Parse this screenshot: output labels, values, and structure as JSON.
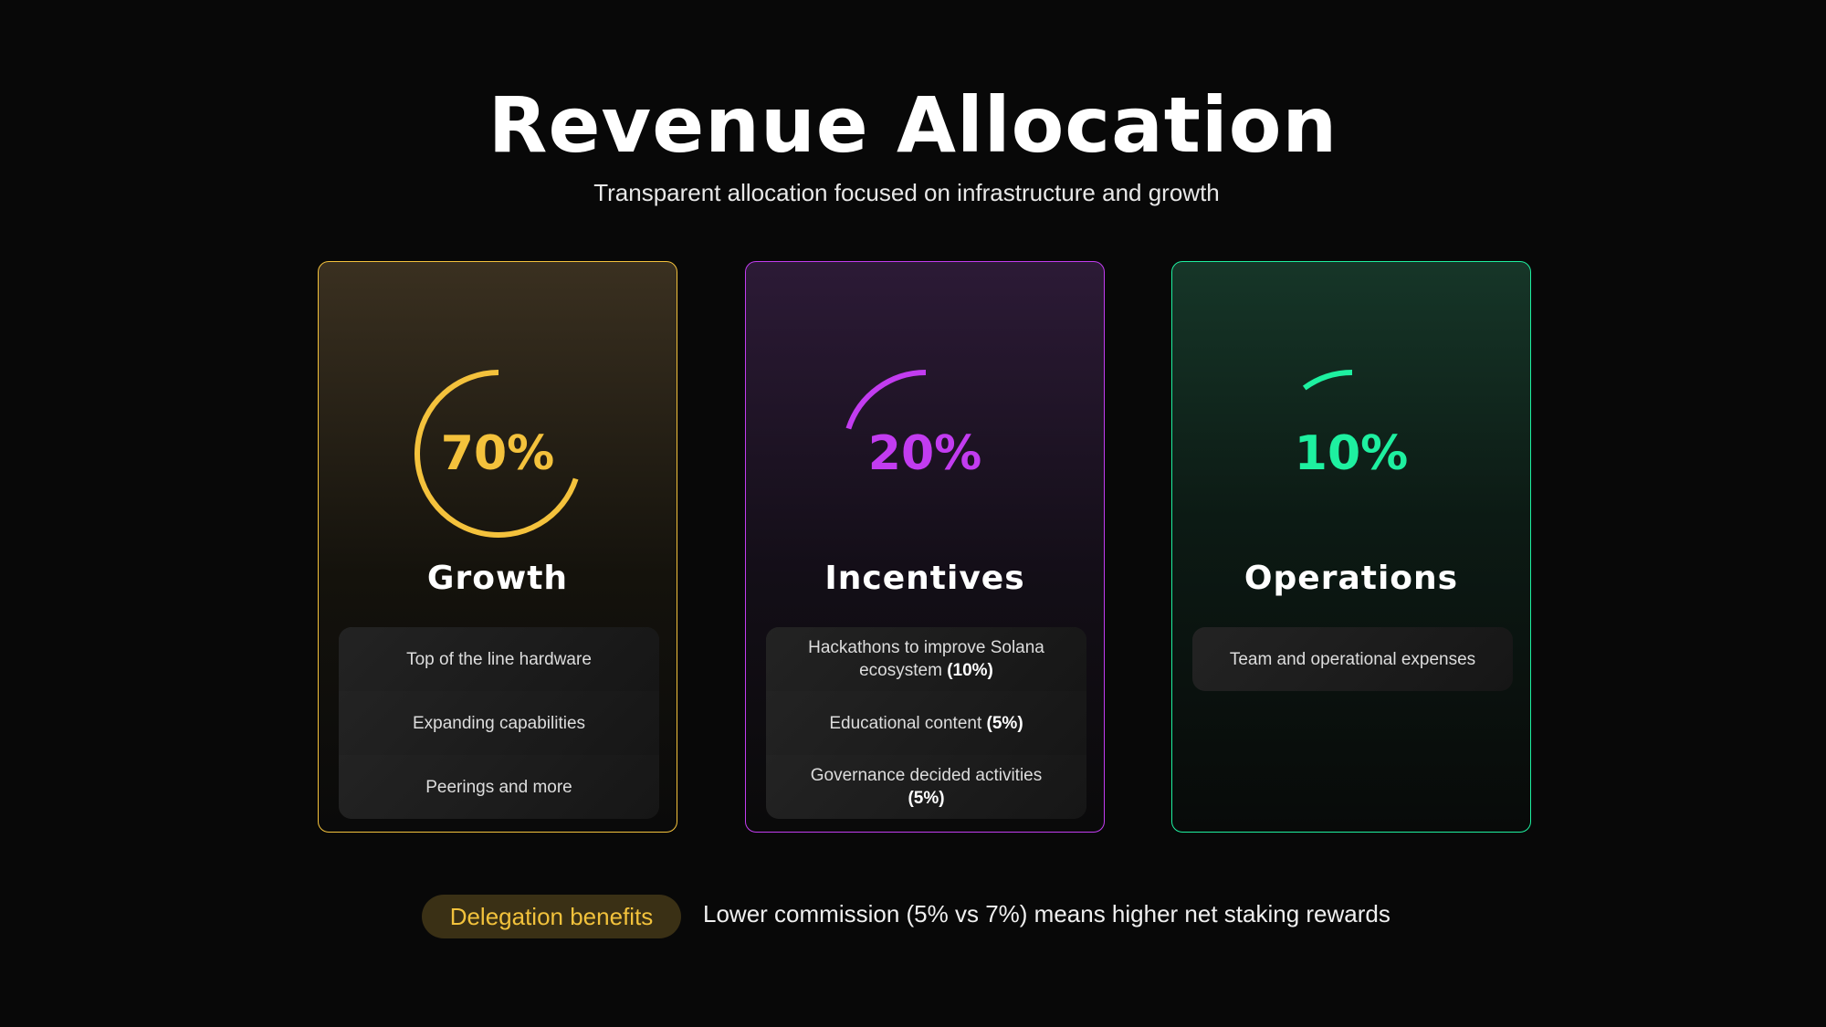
{
  "header": {
    "title": "Revenue Allocation",
    "subtitle": "Transparent allocation focused on infrastructure and growth"
  },
  "cards": [
    {
      "percent_label": "70%",
      "percent": 70,
      "title": "Growth",
      "color": "#f4c23c",
      "items": [
        {
          "text": "Top of the line hardware",
          "bold": ""
        },
        {
          "text": "Expanding capabilities",
          "bold": ""
        },
        {
          "text": "Peerings and more",
          "bold": ""
        }
      ]
    },
    {
      "percent_label": "20%",
      "percent": 20,
      "title": "Incentives",
      "color": "#c23cf0",
      "items": [
        {
          "text": "Hackathons to improve Solana ecosystem",
          "bold": "(10%)"
        },
        {
          "text": "Educational content",
          "bold": "(5%)"
        },
        {
          "text": "Governance decided activities",
          "bold": "(5%)"
        }
      ]
    },
    {
      "percent_label": "10%",
      "percent": 10,
      "title": "Operations",
      "color": "#1ef0a0",
      "items": [
        {
          "text": "Team and operational expenses",
          "bold": ""
        }
      ]
    }
  ],
  "footer": {
    "badge": "Delegation benefits",
    "note": "Lower commission (5% vs 7%) means higher net staking rewards"
  }
}
